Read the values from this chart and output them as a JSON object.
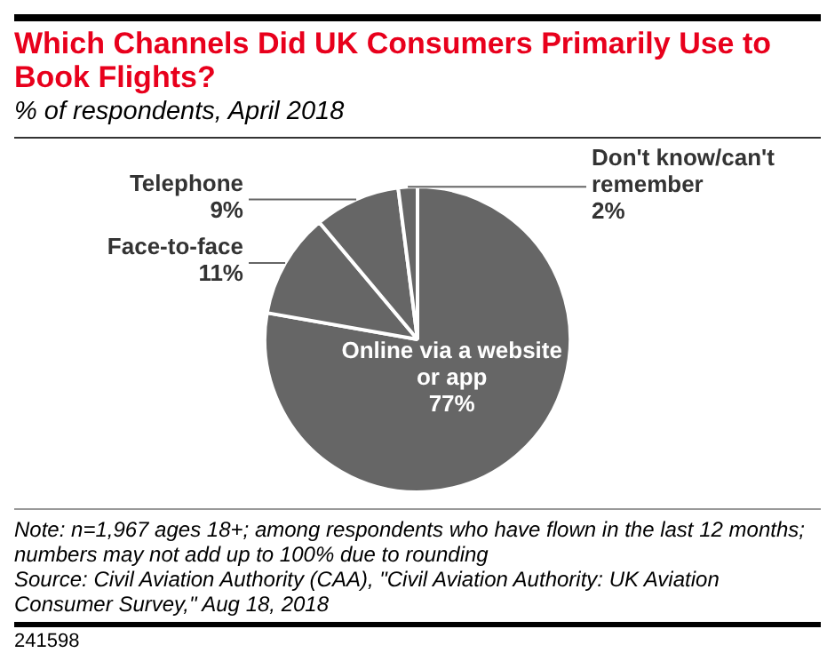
{
  "chart_data": {
    "type": "pie",
    "title": "Which Channels Did UK Consumers Primarily Use to Book Flights?",
    "subtitle": "% of respondents, April 2018",
    "categories": [
      "Online via a website or app",
      "Face-to-face",
      "Telephone",
      "Don't know/can't remember"
    ],
    "values": [
      77,
      11,
      9,
      2
    ],
    "colors": [
      "#666666",
      "#666666",
      "#666666",
      "#666666"
    ],
    "value_labels": [
      "77%",
      "11%",
      "9%",
      "2%"
    ],
    "annotations": [
      "Note: n=1,967 ages 18+; among respondents who have flown in the last 12 months; numbers may not add up to 100% due to rounding",
      "Source: Civil Aviation Authority (CAA), \"Civil Aviation Authority: UK Aviation Consumer Survey,\" Aug 18, 2018",
      "241598"
    ]
  }
}
